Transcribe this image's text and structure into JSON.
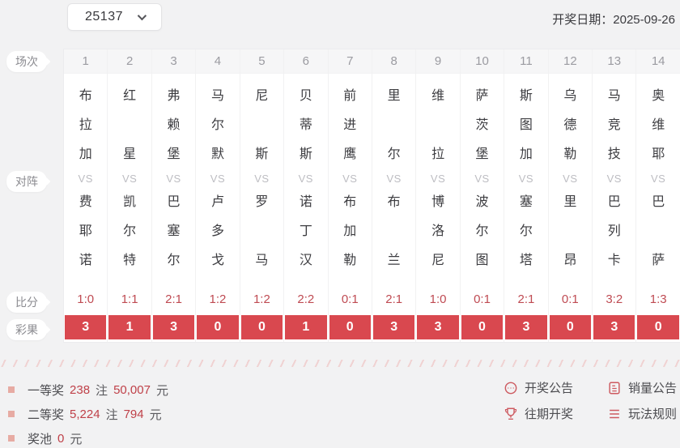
{
  "header": {
    "issue": "25137",
    "draw_date_label": "开奖日期：",
    "draw_date": "2025-09-26"
  },
  "table": {
    "row_labels": {
      "match": "场次",
      "versus": "对阵",
      "score": "比分",
      "result": "彩果"
    },
    "vs_label": "VS",
    "matches": [
      {
        "no": "1",
        "home": "布拉加",
        "away": "费耶诺",
        "score": "1:0",
        "result": "3"
      },
      {
        "no": "2",
        "home": "红星",
        "away": "凯尔特",
        "score": "1:1",
        "result": "1"
      },
      {
        "no": "3",
        "home": "弗赖堡",
        "away": "巴塞尔",
        "score": "2:1",
        "result": "3"
      },
      {
        "no": "4",
        "home": "马尔默",
        "away": "卢多戈",
        "score": "1:2",
        "result": "0"
      },
      {
        "no": "5",
        "home": "尼斯",
        "away": "罗马",
        "score": "1:2",
        "result": "0"
      },
      {
        "no": "6",
        "home": "贝蒂斯",
        "away": "诺丁汉",
        "score": "2:2",
        "result": "1"
      },
      {
        "no": "7",
        "home": "前进鹰",
        "away": "布加勒",
        "score": "0:1",
        "result": "0"
      },
      {
        "no": "8",
        "home": "里尔",
        "away": "布兰",
        "score": "2:1",
        "result": "3"
      },
      {
        "no": "9",
        "home": "维拉",
        "away": "博洛尼",
        "score": "1:0",
        "result": "3"
      },
      {
        "no": "10",
        "home": "萨茨堡",
        "away": "波尔图",
        "score": "0:1",
        "result": "0"
      },
      {
        "no": "11",
        "home": "斯图加",
        "away": "塞尔塔",
        "score": "2:1",
        "result": "3"
      },
      {
        "no": "12",
        "home": "乌德勒",
        "away": "里昂",
        "score": "0:1",
        "result": "0"
      },
      {
        "no": "13",
        "home": "马竞技",
        "away": "巴列卡",
        "score": "3:2",
        "result": "3"
      },
      {
        "no": "14",
        "home": "奥维耶",
        "away": "巴萨",
        "score": "1:3",
        "result": "0"
      }
    ]
  },
  "prizes": [
    {
      "label": "一等奖",
      "count": "238",
      "count_suffix": "注",
      "amount": "50,007",
      "amount_suffix": "元"
    },
    {
      "label": "二等奖",
      "count": "5,224",
      "count_suffix": "注",
      "amount": "794",
      "amount_suffix": "元"
    },
    {
      "label": "奖池",
      "count": null,
      "count_suffix": null,
      "amount": "0",
      "amount_suffix": "元"
    }
  ],
  "links": [
    {
      "icon": "ellipsis-circle-icon",
      "label": "开奖公告"
    },
    {
      "icon": "document-icon",
      "label": "销量公告"
    },
    {
      "icon": "trophy-icon",
      "label": "往期开奖"
    },
    {
      "icon": "list-icon",
      "label": "玩法规则"
    }
  ],
  "colors": {
    "accent_red": "#d9484f",
    "score_red": "#bf4a52",
    "icon_red": "#cd5a60",
    "page_bg": "#f2f2f3"
  }
}
